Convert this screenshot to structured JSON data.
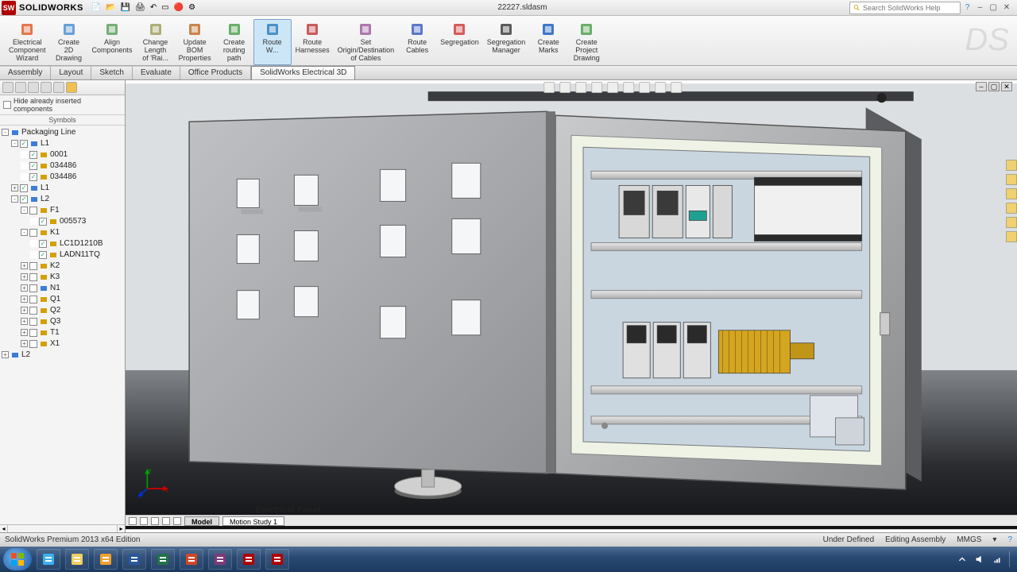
{
  "title": {
    "brand": "SOLIDWORKS",
    "document": "22227.sldasm"
  },
  "search": {
    "placeholder": "Search SolidWorks Help"
  },
  "ribbon": [
    {
      "label": "Electrical\nComponent\nWizard",
      "active": false,
      "color": "#e06030"
    },
    {
      "label": "Create\n2D\nDrawing",
      "active": false,
      "color": "#5090d0"
    },
    {
      "label": "Align\nComponents",
      "active": false,
      "color": "#60a060"
    },
    {
      "label": "Change\nLength\nof 'Rai...",
      "active": false,
      "color": "#a0a060"
    },
    {
      "label": "Update\nBOM\nProperties",
      "active": false,
      "color": "#c07030"
    },
    {
      "label": "Create\nrouting\npath",
      "active": false,
      "color": "#50a050"
    },
    {
      "label": "Route\nW...",
      "active": true,
      "color": "#3080c0"
    },
    {
      "label": "Route\nHarnesses",
      "active": false,
      "color": "#c04040"
    },
    {
      "label": "Set\nOrigin/Destination\nof Cables",
      "active": false,
      "color": "#a060a0"
    },
    {
      "label": "Route\nCables",
      "active": false,
      "color": "#4060c0"
    },
    {
      "label": "Segregation",
      "active": false,
      "color": "#d04040"
    },
    {
      "label": "Segregation\nManager",
      "active": false,
      "color": "#404040"
    },
    {
      "label": "Create\nMarks",
      "active": false,
      "color": "#2060c0"
    },
    {
      "label": "Create\nProject\nDrawing",
      "active": false,
      "color": "#50a050"
    }
  ],
  "tabs": [
    {
      "label": "Assembly",
      "active": false
    },
    {
      "label": "Layout",
      "active": false
    },
    {
      "label": "Sketch",
      "active": false
    },
    {
      "label": "Evaluate",
      "active": false
    },
    {
      "label": "Office Products",
      "active": false
    },
    {
      "label": "SolidWorks Electrical 3D",
      "active": true
    }
  ],
  "panel": {
    "hide_label": "Hide already inserted components",
    "symbols_label": "Symbols",
    "tree": [
      {
        "depth": 0,
        "exp": "-",
        "chk": false,
        "icon": "b",
        "label": "Packaging Line"
      },
      {
        "depth": 1,
        "exp": "-",
        "chk": true,
        "icon": "b",
        "label": "L1"
      },
      {
        "depth": 2,
        "exp": "",
        "chk": true,
        "icon": "y",
        "label": "0001"
      },
      {
        "depth": 2,
        "exp": "",
        "chk": true,
        "icon": "y",
        "label": "034486"
      },
      {
        "depth": 2,
        "exp": "",
        "chk": true,
        "icon": "y",
        "label": "034486"
      },
      {
        "depth": 1,
        "exp": "+",
        "chk": true,
        "icon": "b",
        "label": "L1"
      },
      {
        "depth": 1,
        "exp": "-",
        "chk": true,
        "icon": "b",
        "label": "L2"
      },
      {
        "depth": 2,
        "exp": "-",
        "chk": false,
        "icon": "y",
        "label": "F1"
      },
      {
        "depth": 3,
        "exp": "",
        "chk": true,
        "icon": "y",
        "label": "005573"
      },
      {
        "depth": 2,
        "exp": "-",
        "chk": false,
        "icon": "y",
        "label": "K1"
      },
      {
        "depth": 3,
        "exp": "",
        "chk": true,
        "icon": "y",
        "label": "LC1D1210B"
      },
      {
        "depth": 3,
        "exp": "",
        "chk": true,
        "icon": "y",
        "label": "LADN11TQ"
      },
      {
        "depth": 2,
        "exp": "+",
        "chk": false,
        "icon": "y",
        "label": "K2"
      },
      {
        "depth": 2,
        "exp": "+",
        "chk": false,
        "icon": "y",
        "label": "K3"
      },
      {
        "depth": 2,
        "exp": "+",
        "chk": false,
        "icon": "b",
        "label": "N1"
      },
      {
        "depth": 2,
        "exp": "+",
        "chk": false,
        "icon": "y",
        "label": "Q1"
      },
      {
        "depth": 2,
        "exp": "+",
        "chk": false,
        "icon": "y",
        "label": "Q2"
      },
      {
        "depth": 2,
        "exp": "+",
        "chk": false,
        "icon": "y",
        "label": "Q3"
      },
      {
        "depth": 2,
        "exp": "+",
        "chk": false,
        "icon": "y",
        "label": "T1"
      },
      {
        "depth": 2,
        "exp": "+",
        "chk": false,
        "icon": "y",
        "label": "X1"
      },
      {
        "depth": 0,
        "exp": "+",
        "chk": false,
        "icon": "b",
        "label": "L2"
      }
    ]
  },
  "scene_label": "Electrical Panel",
  "bottom_tabs": {
    "model": "Model",
    "motion": "Motion Study 1"
  },
  "status": {
    "left": "SolidWorks Premium 2013 x64 Edition",
    "under": "Under Defined",
    "context": "Editing Assembly",
    "units": "MMGS"
  },
  "taskbar_icons": [
    {
      "name": "ie",
      "color": "#3bb0f0"
    },
    {
      "name": "explorer",
      "color": "#f0d060"
    },
    {
      "name": "outlook",
      "color": "#f0a030"
    },
    {
      "name": "word",
      "color": "#2b579a"
    },
    {
      "name": "excel",
      "color": "#217346"
    },
    {
      "name": "ppt",
      "color": "#d24726"
    },
    {
      "name": "onenote",
      "color": "#80397b"
    },
    {
      "name": "sw1",
      "color": "#b00000"
    },
    {
      "name": "sw2",
      "color": "#b00000"
    }
  ]
}
